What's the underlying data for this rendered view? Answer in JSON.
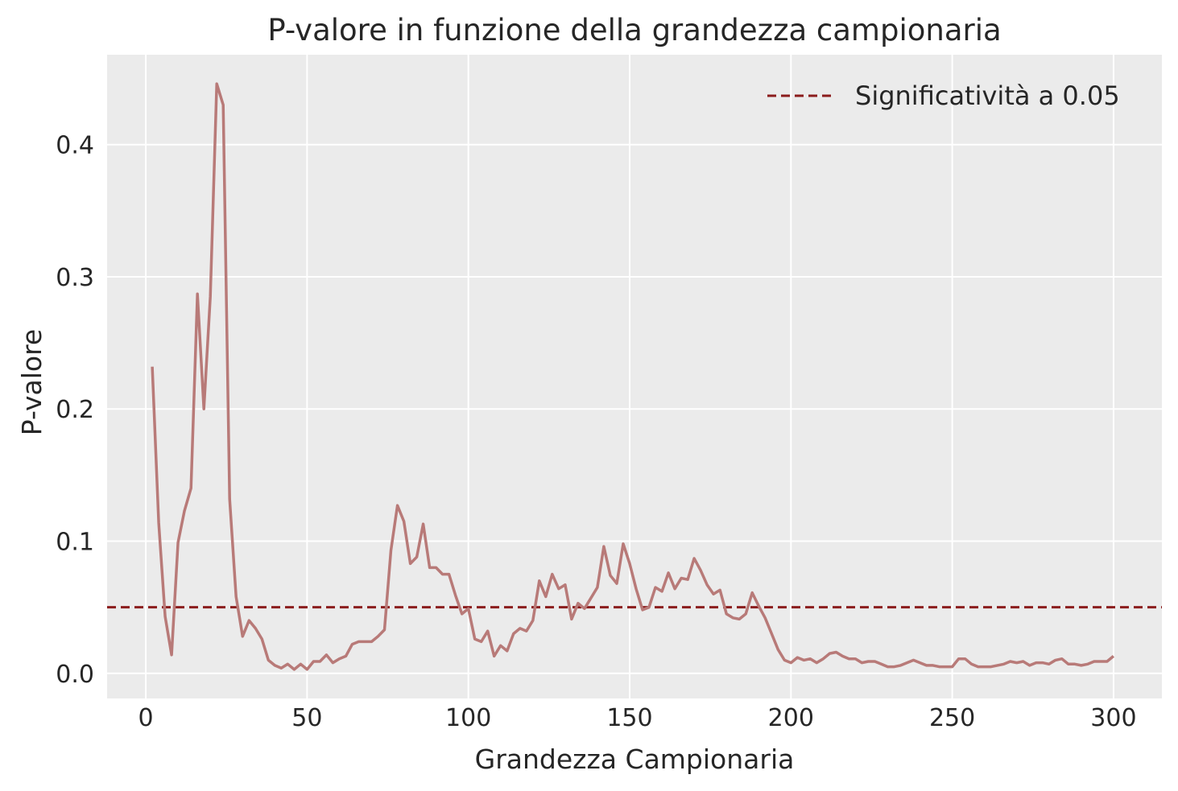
{
  "chart_data": {
    "type": "line",
    "title": "P-valore in funzione della grandezza campionaria",
    "xlabel": "Grandezza Campionaria",
    "ylabel": "P-valore",
    "xlim": [
      -12,
      315
    ],
    "ylim": [
      -0.019,
      0.468
    ],
    "xticks": [
      0,
      50,
      100,
      150,
      200,
      250,
      300
    ],
    "yticks": [
      0.0,
      0.1,
      0.2,
      0.3,
      0.4
    ],
    "xtick_labels": [
      "0",
      "50",
      "100",
      "150",
      "200",
      "250",
      "300"
    ],
    "ytick_labels": [
      "0.0",
      "0.1",
      "0.2",
      "0.3",
      "0.4"
    ],
    "grid": true,
    "legend_position": "top-right",
    "colors": {
      "series": "#b87a78",
      "threshold": "#8b1c1c",
      "background": "#ebebeb",
      "grid": "#ffffff"
    },
    "series": [
      {
        "x": [
          2,
          4,
          6,
          8,
          10,
          12,
          14,
          16,
          18,
          20,
          22,
          24,
          26,
          28,
          30,
          32,
          34,
          36,
          38,
          40,
          42,
          44,
          46,
          48,
          50,
          52,
          54,
          56,
          58,
          60,
          62,
          64,
          66,
          68,
          70,
          72,
          74,
          76,
          78,
          80,
          82,
          84,
          86,
          88,
          90,
          92,
          94,
          96,
          98,
          100,
          102,
          104,
          106,
          108,
          110,
          112,
          114,
          116,
          118,
          120,
          122,
          124,
          126,
          128,
          130,
          132,
          134,
          136,
          138,
          140,
          142,
          144,
          146,
          148,
          150,
          152,
          154,
          156,
          158,
          160,
          162,
          164,
          166,
          168,
          170,
          172,
          174,
          176,
          178,
          180,
          182,
          184,
          186,
          188,
          190,
          192,
          194,
          196,
          198,
          200,
          202,
          204,
          206,
          208,
          210,
          212,
          214,
          216,
          218,
          220,
          222,
          224,
          226,
          228,
          230,
          232,
          234,
          236,
          238,
          240,
          242,
          244,
          246,
          248,
          250,
          252,
          254,
          256,
          258,
          260,
          262,
          264,
          266,
          268,
          270,
          272,
          274,
          276,
          278,
          280,
          282,
          284,
          286,
          288,
          290,
          292,
          294,
          296,
          298,
          300
        ],
        "y": [
          0.232,
          0.114,
          0.043,
          0.014,
          0.099,
          0.123,
          0.14,
          0.287,
          0.2,
          0.285,
          0.446,
          0.43,
          0.132,
          0.058,
          0.028,
          0.04,
          0.034,
          0.026,
          0.01,
          0.006,
          0.004,
          0.007,
          0.003,
          0.007,
          0.003,
          0.009,
          0.009,
          0.014,
          0.008,
          0.011,
          0.013,
          0.022,
          0.024,
          0.024,
          0.024,
          0.028,
          0.033,
          0.093,
          0.127,
          0.115,
          0.083,
          0.088,
          0.113,
          0.08,
          0.08,
          0.075,
          0.075,
          0.059,
          0.045,
          0.049,
          0.026,
          0.024,
          0.032,
          0.013,
          0.021,
          0.017,
          0.03,
          0.034,
          0.032,
          0.04,
          0.07,
          0.058,
          0.075,
          0.064,
          0.067,
          0.041,
          0.053,
          0.049,
          0.057,
          0.065,
          0.096,
          0.074,
          0.068,
          0.098,
          0.083,
          0.064,
          0.048,
          0.05,
          0.065,
          0.062,
          0.076,
          0.064,
          0.072,
          0.071,
          0.087,
          0.078,
          0.067,
          0.06,
          0.063,
          0.045,
          0.042,
          0.041,
          0.045,
          0.061,
          0.051,
          0.042,
          0.03,
          0.018,
          0.01,
          0.008,
          0.012,
          0.01,
          0.011,
          0.008,
          0.011,
          0.015,
          0.016,
          0.013,
          0.011,
          0.011,
          0.008,
          0.009,
          0.009,
          0.007,
          0.005,
          0.005,
          0.006,
          0.008,
          0.01,
          0.008,
          0.006,
          0.006,
          0.005,
          0.005,
          0.005,
          0.011,
          0.011,
          0.007,
          0.005,
          0.005,
          0.005,
          0.006,
          0.007,
          0.009,
          0.008,
          0.009,
          0.006,
          0.008,
          0.008,
          0.007,
          0.01,
          0.011,
          0.007,
          0.007,
          0.006,
          0.007,
          0.009,
          0.009,
          0.009,
          0.013
        ]
      }
    ],
    "threshold": {
      "label": "Significatività a 0.05",
      "value": 0.05
    }
  }
}
